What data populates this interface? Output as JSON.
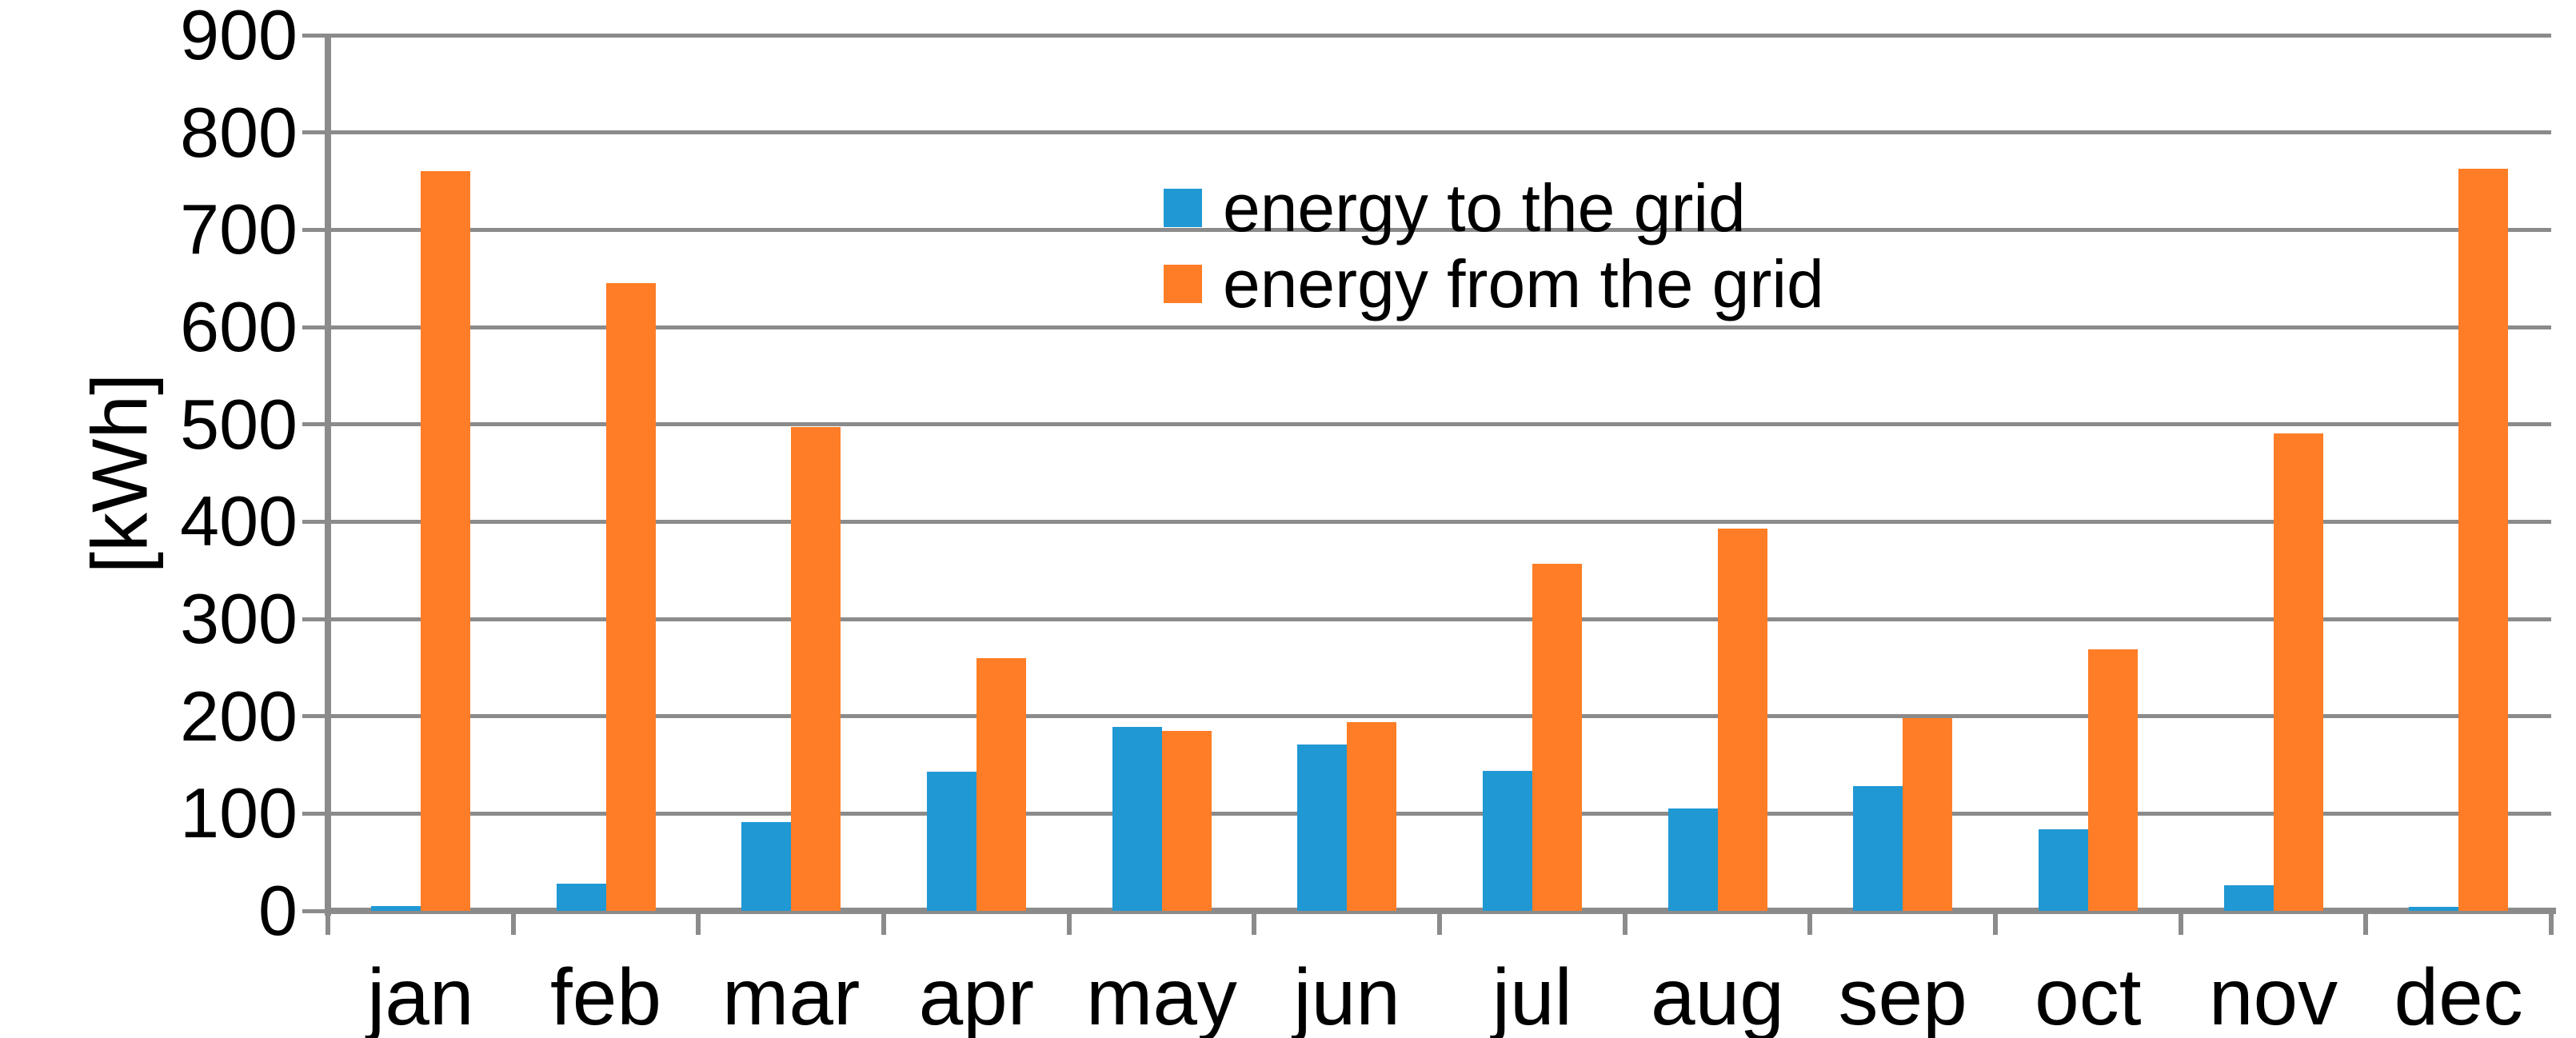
{
  "chart_data": {
    "type": "bar",
    "title": "",
    "xlabel": "",
    "ylabel": "[kWh]",
    "ylim": [
      0,
      900
    ],
    "ytick_step": 100,
    "ytick_labels": [
      "0",
      "100",
      "200",
      "300",
      "400",
      "500",
      "600",
      "700",
      "800",
      "900"
    ],
    "grid": true,
    "legend_position": "top-center",
    "categories": [
      "jan",
      "feb",
      "mar",
      "apr",
      "may",
      "jun",
      "jul",
      "aug",
      "sep",
      "oct",
      "nov",
      "dec"
    ],
    "series": [
      {
        "name": "energy to the grid",
        "color": "#2098D4",
        "values": [
          5,
          28,
          91,
          143,
          189,
          171,
          144,
          105,
          128,
          84,
          26,
          4
        ]
      },
      {
        "name": "energy from the grid",
        "color": "#FF7D26",
        "values": [
          760,
          645,
          497,
          260,
          185,
          194,
          357,
          393,
          198,
          269,
          491,
          763
        ]
      }
    ],
    "colors": {
      "gridline": "#8B8B8B",
      "axis": "#8B8B8B",
      "text": "#000000",
      "background": "#FFFFFF"
    }
  }
}
